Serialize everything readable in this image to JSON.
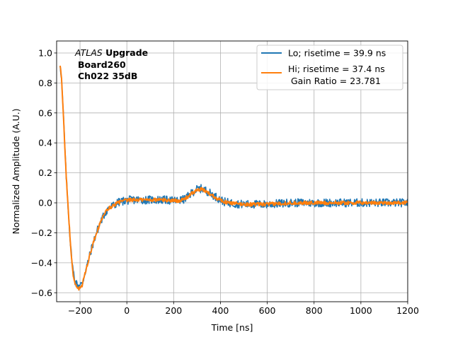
{
  "chart_data": {
    "type": "line",
    "title": "",
    "xlabel": "Time [ns]",
    "ylabel": "Normalized Amplitude (A.U.)",
    "xlim": [
      -300,
      1200
    ],
    "ylim": [
      -0.66,
      1.08
    ],
    "xticks": [
      -200,
      0,
      200,
      400,
      600,
      800,
      1000,
      1200
    ],
    "yticks": [
      -0.6,
      -0.4,
      -0.2,
      0.0,
      0.2,
      0.4,
      0.6,
      0.8,
      1.0
    ],
    "xtick_labels": [
      "−200",
      "0",
      "200",
      "400",
      "600",
      "800",
      "1000",
      "1200"
    ],
    "ytick_labels": [
      "−0.6",
      "−0.4",
      "−0.2",
      "0.0",
      "0.2",
      "0.4",
      "0.6",
      "0.8",
      "1.0"
    ],
    "grid": true,
    "legend_position": "top-right",
    "annotation": {
      "line1_italic": "ATLAS",
      "line1_bold": " Upgrade",
      "line2": "Board260",
      "line3": "Ch022 35dB"
    },
    "legend": {
      "entries": [
        {
          "label_lines": [
            "Lo; risetime = 39.9 ns"
          ],
          "color": "#1f77b4"
        },
        {
          "label_lines": [
            "Hi; risetime = 37.4 ns",
            " Gain Ratio = 23.781"
          ],
          "color": "#ff7f0e"
        }
      ]
    },
    "series": [
      {
        "name": "Lo; risetime = 39.9 ns",
        "color": "#1f77b4",
        "noise_amplitude": 0.028,
        "x": [
          -300,
          -290,
          -280,
          -270,
          -260,
          -250,
          -240,
          -230,
          -220,
          -210,
          -200,
          -190,
          -180,
          -170,
          -160,
          -150,
          -140,
          -130,
          -120,
          -110,
          -100,
          -90,
          -80,
          -70,
          -60,
          -50,
          -40,
          -30,
          -20,
          -10,
          0,
          20,
          50,
          100,
          150,
          200,
          220,
          240,
          260,
          280,
          300,
          320,
          340,
          360,
          380,
          400,
          420,
          440,
          460,
          500,
          550,
          600,
          650,
          700,
          800,
          900,
          1000,
          1100,
          1200
        ],
        "y": [
          0.85,
          1.0,
          0.85,
          0.55,
          0.2,
          -0.05,
          -0.3,
          -0.45,
          -0.53,
          -0.55,
          -0.55,
          -0.54,
          -0.47,
          -0.42,
          -0.36,
          -0.3,
          -0.25,
          -0.2,
          -0.16,
          -0.12,
          -0.09,
          -0.06,
          -0.04,
          -0.03,
          -0.02,
          -0.01,
          0.0,
          0.005,
          0.01,
          0.015,
          0.015,
          0.02,
          0.02,
          0.02,
          0.02,
          0.015,
          0.015,
          0.02,
          0.04,
          0.07,
          0.09,
          0.095,
          0.08,
          0.06,
          0.04,
          0.02,
          0.005,
          0.0,
          -0.005,
          -0.01,
          -0.01,
          -0.01,
          -0.005,
          0.0,
          0.0,
          0.0,
          0.0,
          0.0,
          0.0
        ]
      },
      {
        "name": "Hi; risetime = 37.4 ns",
        "color": "#ff7f0e",
        "noise_amplitude": 0.012,
        "x": [
          -300,
          -290,
          -280,
          -270,
          -260,
          -250,
          -240,
          -230,
          -220,
          -210,
          -200,
          -190,
          -180,
          -170,
          -160,
          -150,
          -140,
          -130,
          -120,
          -110,
          -100,
          -90,
          -80,
          -70,
          -60,
          -50,
          -40,
          -30,
          -20,
          -10,
          0,
          20,
          50,
          100,
          150,
          200,
          220,
          240,
          260,
          280,
          300,
          320,
          340,
          360,
          380,
          400,
          420,
          440,
          460,
          500,
          550,
          600,
          650,
          700,
          800,
          900,
          1000,
          1100,
          1200
        ],
        "y": [
          0.85,
          1.0,
          0.85,
          0.55,
          0.2,
          -0.05,
          -0.3,
          -0.47,
          -0.55,
          -0.57,
          -0.57,
          -0.55,
          -0.48,
          -0.42,
          -0.36,
          -0.3,
          -0.25,
          -0.2,
          -0.16,
          -0.12,
          -0.09,
          -0.06,
          -0.04,
          -0.03,
          -0.02,
          -0.01,
          0.0,
          0.005,
          0.01,
          0.015,
          0.015,
          0.02,
          0.02,
          0.02,
          0.02,
          0.015,
          0.015,
          0.02,
          0.04,
          0.065,
          0.085,
          0.09,
          0.075,
          0.055,
          0.035,
          0.02,
          0.005,
          0.0,
          -0.005,
          -0.01,
          -0.01,
          -0.01,
          -0.005,
          0.0,
          0.0,
          0.0,
          0.0,
          0.0,
          0.0
        ]
      }
    ]
  }
}
